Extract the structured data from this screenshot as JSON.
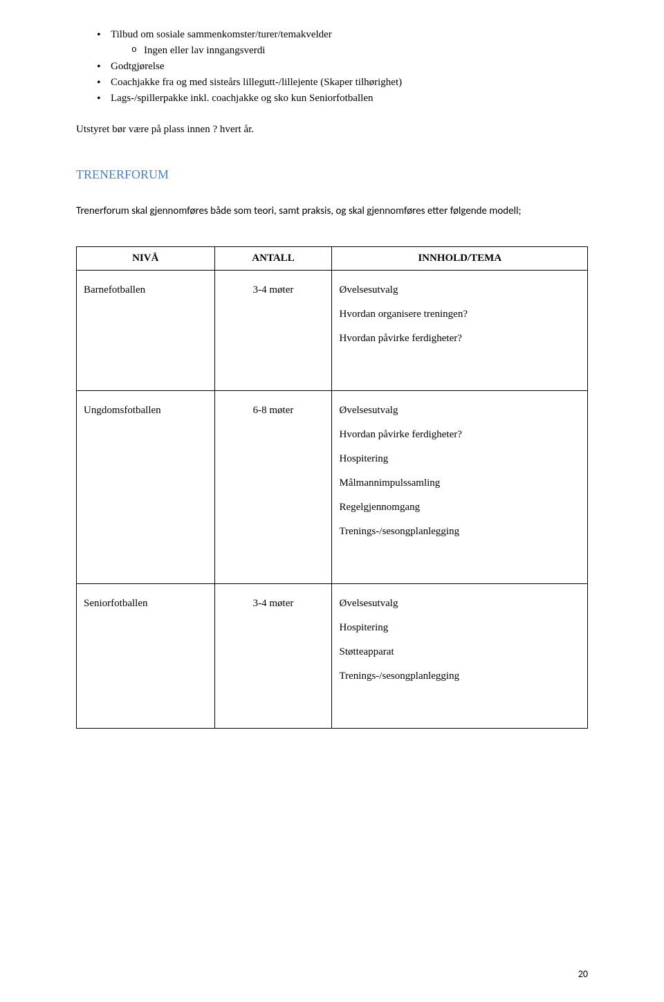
{
  "bullets": {
    "items": [
      {
        "text": "Tilbud om sosiale sammenkomster/turer/temakvelder",
        "sub": [
          {
            "text": "Ingen eller lav inngangsverdi"
          }
        ]
      },
      {
        "text": "Godtgjørelse"
      },
      {
        "text": "Coachjakke fra og med sisteårs lillegutt-/lillejente (Skaper tilhørighet)"
      },
      {
        "text": "Lags-/spillerpakke inkl. coachjakke og sko kun Seniorfotballen"
      }
    ]
  },
  "paragraph": "Utstyret bør være på plass innen ? hvert år.",
  "section": {
    "heading": "TRENERFORUM",
    "heading_color": "#4f81bd",
    "intro": "Trenerforum skal gjennomføres både som teori, samt praksis, og skal gjennomføres etter følgende modell;"
  },
  "table": {
    "headers": {
      "niva": "NIVÅ",
      "antall": "ANTALL",
      "innhold": "INNHOLD/TEMA"
    },
    "rows": [
      {
        "niva": "Barnefotballen",
        "antall": "3-4 møter",
        "innhold": [
          "Øvelsesutvalg",
          "Hvordan organisere treningen?",
          "Hvordan påvirke ferdigheter?"
        ]
      },
      {
        "niva": "Ungdomsfotballen",
        "antall": "6-8 møter",
        "innhold": [
          "Øvelsesutvalg",
          "Hvordan påvirke ferdigheter?",
          "Hospitering",
          "Målmannimpulssamling",
          "Regelgjennomgang",
          "Trenings-/sesongplanlegging"
        ]
      },
      {
        "niva": "Seniorfotballen",
        "antall": "3-4 møter",
        "innhold": [
          "Øvelsesutvalg",
          "Hospitering",
          "Støtteapparat",
          "Trenings-/sesongplanlegging"
        ]
      }
    ]
  },
  "page_number": "20"
}
